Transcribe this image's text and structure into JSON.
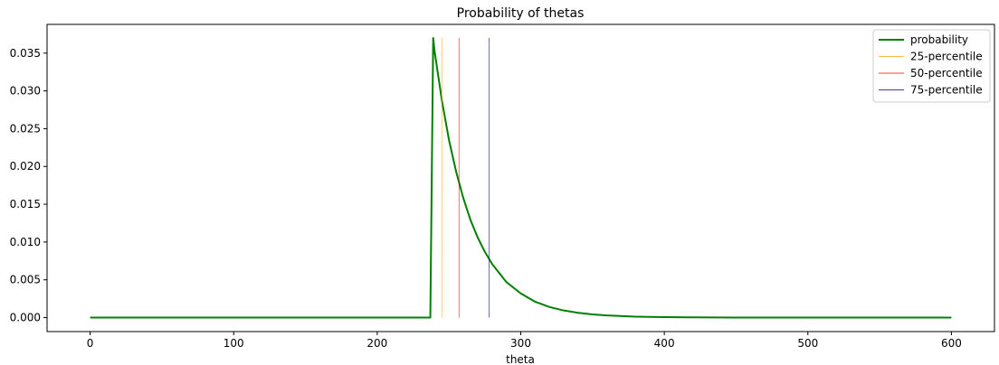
{
  "chart_data": {
    "type": "line",
    "title": "Probability of thetas",
    "xlabel": "theta",
    "ylabel": "",
    "xlim": [
      -30,
      630
    ],
    "ylim": [
      -0.00185,
      0.0388
    ],
    "xticks": [
      0,
      100,
      200,
      300,
      400,
      500,
      600
    ],
    "yticks": [
      0.0,
      0.005,
      0.01,
      0.015,
      0.02,
      0.025,
      0.03,
      0.035
    ],
    "ytick_labels": [
      "0.000",
      "0.005",
      "0.010",
      "0.015",
      "0.020",
      "0.025",
      "0.030",
      "0.035"
    ],
    "grid": false,
    "legend_position": "top-right",
    "series": [
      {
        "name": "probability",
        "color": "#008000",
        "x": [
          0,
          50,
          100,
          150,
          200,
          237,
          238,
          239,
          240,
          245,
          250,
          255,
          260,
          265,
          270,
          275,
          280,
          290,
          300,
          310,
          320,
          330,
          340,
          350,
          360,
          380,
          400,
          420,
          450,
          480,
          500,
          550,
          600
        ],
        "y": [
          0,
          0,
          0,
          0,
          0,
          0,
          0.0185,
          0.037,
          0.0352,
          0.0288,
          0.0235,
          0.0193,
          0.0158,
          0.0129,
          0.0106,
          0.0087,
          0.0071,
          0.0047,
          0.0032,
          0.0021,
          0.0014,
          0.00094,
          0.00063,
          0.00042,
          0.00028,
          0.00013,
          6e-05,
          3e-05,
          1e-05,
          0.0,
          0,
          0,
          0
        ]
      }
    ],
    "percentile_lines": [
      {
        "name": "25-percentile",
        "color": "#ffa500",
        "x": 245,
        "y_min": 0,
        "y_max": 0.037
      },
      {
        "name": "50-percentile",
        "color": "#ff0000",
        "x": 257,
        "y_min": 0,
        "y_max": 0.037
      },
      {
        "name": "75-percentile",
        "color": "#000080",
        "x": 278,
        "y_min": 0,
        "y_max": 0.037
      }
    ]
  }
}
